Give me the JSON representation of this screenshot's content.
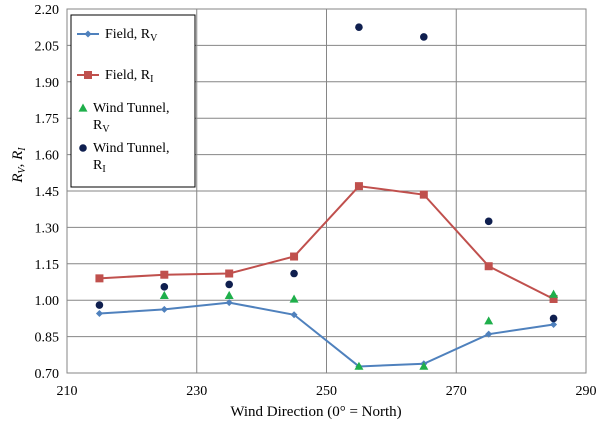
{
  "chart_data": {
    "type": "scatter",
    "xlabel": "Wind Direction (0° = North)",
    "ylabel": {
      "r_v": "R",
      "r_v_sub": "V",
      "sep": ", ",
      "r_i": "R",
      "r_i_sub": "I"
    },
    "xlim": [
      210,
      290
    ],
    "ylim": [
      0.7,
      2.2
    ],
    "xticks": [
      "210",
      "230",
      "250",
      "270",
      "290"
    ],
    "yticks": [
      "0.70",
      "0.85",
      "1.00",
      "1.15",
      "1.30",
      "1.45",
      "1.60",
      "1.75",
      "1.90",
      "2.05",
      "2.20"
    ],
    "grid": true,
    "legend_position": "top-left",
    "series": [
      {
        "name": "Field, R",
        "sub": "V",
        "style": "line",
        "marker": "diamond",
        "color": "#4F81BD",
        "x": [
          215,
          225,
          235,
          245,
          255,
          265,
          275,
          285
        ],
        "y": [
          0.945,
          0.962,
          0.99,
          0.94,
          0.727,
          0.738,
          0.86,
          0.9
        ]
      },
      {
        "name": "Field, R",
        "sub": "I",
        "style": "line",
        "marker": "square",
        "color": "#C0504D",
        "x": [
          215,
          225,
          235,
          245,
          255,
          265,
          275,
          285
        ],
        "y": [
          1.09,
          1.105,
          1.11,
          1.18,
          1.47,
          1.435,
          1.14,
          1.005
        ]
      },
      {
        "name": "Wind Tunnel,",
        "name2": "R",
        "sub": "V",
        "style": "points",
        "marker": "triangle",
        "color": "#1FAF4B",
        "x": [
          215,
          225,
          235,
          245,
          255,
          265,
          275,
          285
        ],
        "y": [
          null,
          1.02,
          1.02,
          1.005,
          0.728,
          0.728,
          0.915,
          1.025
        ]
      },
      {
        "name": "Wind Tunnel,",
        "name2": "R",
        "sub": "I",
        "style": "points",
        "marker": "circle",
        "color": "#0F1F4F",
        "x": [
          215,
          225,
          235,
          245,
          255,
          265,
          275,
          285
        ],
        "y": [
          0.98,
          1.055,
          1.065,
          1.11,
          2.125,
          2.085,
          1.325,
          0.925
        ]
      }
    ]
  }
}
